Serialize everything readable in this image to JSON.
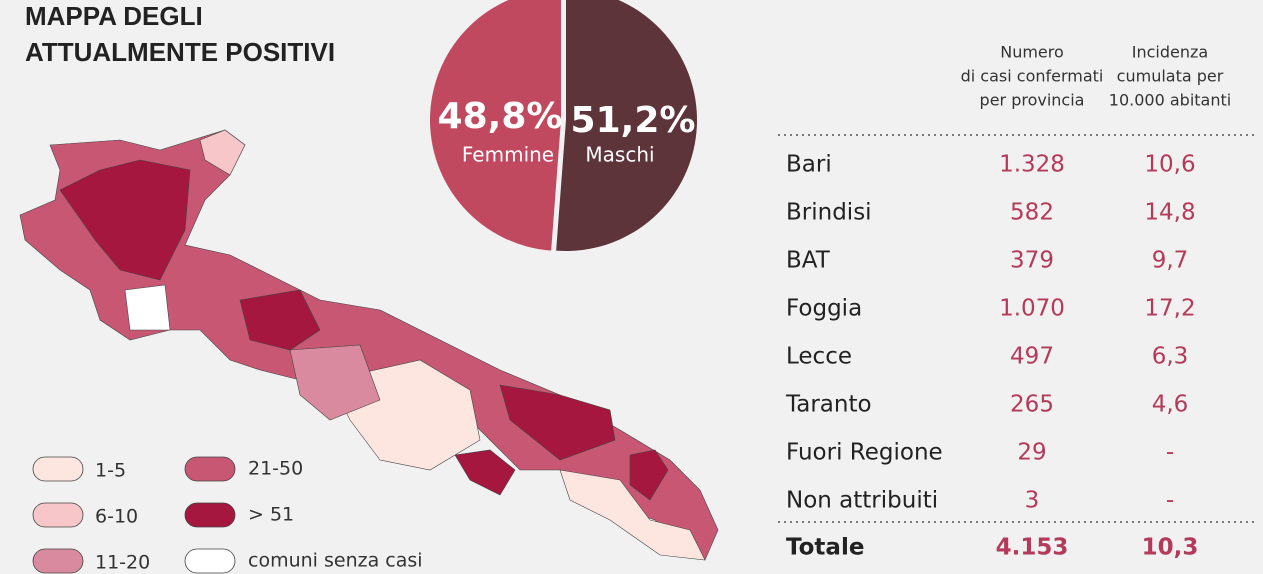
{
  "header": {
    "title_line_1": "MAPPA DEGLI",
    "title_line_2": "ATTUALMENTE POSITIVI"
  },
  "chart_data": {
    "type": "pie",
    "categories": [
      "Femmine",
      "Maschi"
    ],
    "values": [
      48.8,
      51.2
    ],
    "value_labels": [
      "48,8%",
      "51,2%"
    ],
    "colors": [
      "#c0485f",
      "#5c343a"
    ]
  },
  "legend": {
    "items": [
      {
        "label": "1-5",
        "color": "#fde6e0"
      },
      {
        "label": "6-10",
        "color": "#f6c6c8"
      },
      {
        "label": "11-20",
        "color": "#d98a9e"
      },
      {
        "label": "21-50",
        "color": "#c85774"
      },
      {
        "label": "> 51",
        "color": "#a5173e"
      },
      {
        "label": "comuni senza casi",
        "color": "#ffffff"
      }
    ]
  },
  "table": {
    "headers": [
      [
        "Numero",
        "di casi confermati",
        "per provincia"
      ],
      [
        "Incidenza",
        "cumulata per",
        "10.000 abitanti"
      ]
    ],
    "rows": [
      [
        "Bari",
        "1.328",
        "10,6"
      ],
      [
        "Brindisi",
        "582",
        "14,8"
      ],
      [
        "BAT",
        "379",
        "9,7"
      ],
      [
        "Foggia",
        "1.070",
        "17,2"
      ],
      [
        "Lecce",
        "497",
        "6,3"
      ],
      [
        "Taranto",
        "265",
        "4,6"
      ],
      [
        "Fuori Regione",
        "29",
        "-"
      ],
      [
        "Non attribuiti",
        "3",
        "-"
      ]
    ],
    "total": [
      "Totale",
      "4.153",
      "10,3"
    ]
  }
}
